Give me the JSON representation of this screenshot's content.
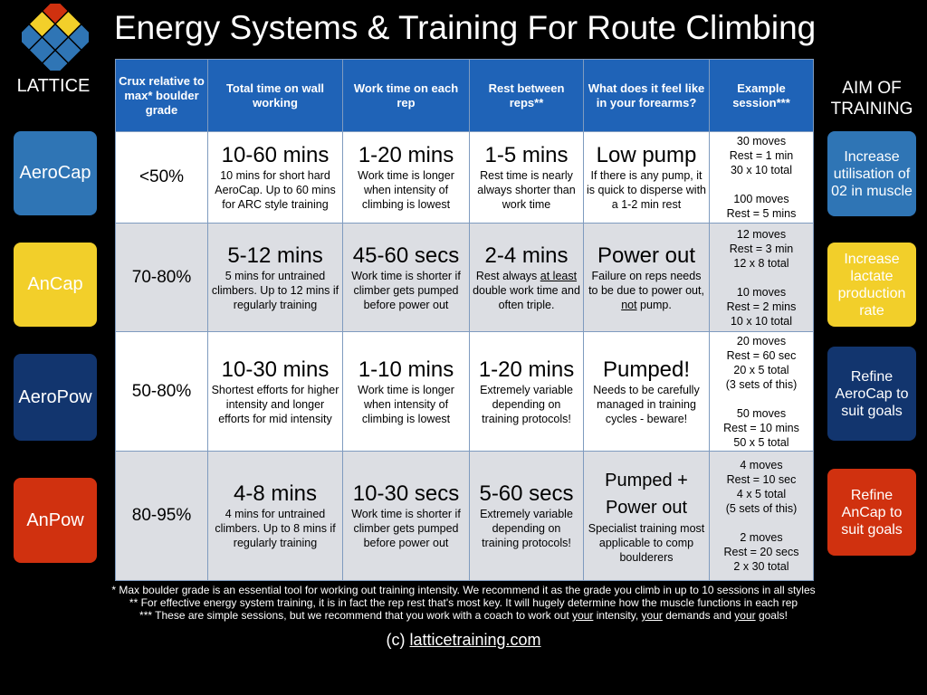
{
  "brand": "LATTICE",
  "title": "Energy Systems & Training For Route Climbing",
  "colors": {
    "aerocap": "#2f75b5",
    "ancap": "#f2cf2a",
    "aeropow": "#12356e",
    "anpow": "#d0310f",
    "header": "#1f63b7"
  },
  "left_buttons": [
    "AeroCap",
    "AnCap",
    "AeroPow",
    "AnPow"
  ],
  "aim_label": "AIM OF TRAINING",
  "aims": [
    "Increase utilisation of 02 in muscle",
    "Increase lactate production rate",
    "Refine AeroCap to suit goals",
    "Refine AnCap to suit goals"
  ],
  "headers": [
    "Crux relative to max* boulder grade",
    "Total time on wall working",
    "Work time on each rep",
    "Rest between reps**",
    "What does it feel like in your forearms?",
    "Example session***"
  ],
  "rows": [
    {
      "crux": "<50%",
      "total_big": "10-60 mins",
      "total_small": "10 mins for short hard AeroCap. Up to 60 mins for ARC style training",
      "work_big": "1-20 mins",
      "work_small": "Work time is longer when intensity of climbing is lowest",
      "rest_big": "1-5 mins",
      "rest_small": "Rest time is nearly always shorter than work time",
      "feel_big": "Low pump",
      "feel_small": "If there is any pump, it is quick to disperse with a 1-2 min rest",
      "session": "30 moves\nRest = 1 min\n30 x 10 total\n\n100 moves\nRest = 5 mins"
    },
    {
      "crux": "70-80%",
      "total_big": "5-12 mins",
      "total_small": "5 mins for untrained climbers. Up to 12 mins if regularly training",
      "work_big": "45-60 secs",
      "work_small": "Work time is shorter if climber gets pumped before power out",
      "rest_big": "2-4 mins",
      "rest_small_a": "Rest always ",
      "rest_small_u": "at least",
      "rest_small_b": " double work time and often triple.",
      "feel_big": "Power out",
      "feel_small_a": "Failure on reps needs to be due to power out, ",
      "feel_small_u": "not",
      "feel_small_b": " pump.",
      "session": "12 moves\nRest = 3 min\n12 x 8 total\n\n10 moves\nRest = 2 mins\n10 x 10 total"
    },
    {
      "crux": "50-80%",
      "total_big": "10-30 mins",
      "total_small": "Shortest efforts for higher intensity and longer efforts for mid intensity",
      "work_big": "1-10 mins",
      "work_small": "Work time is longer when intensity of climbing is lowest",
      "rest_big": "1-20 mins",
      "rest_small": "Extremely variable depending on training protocols!",
      "feel_big": "Pumped!",
      "feel_small": "Needs to be carefully managed in training cycles - beware!",
      "session": "20 moves\nRest = 60 sec\n20 x 5 total\n(3 sets of this)\n\n50 moves\nRest = 10 mins\n50 x 5 total"
    },
    {
      "crux": "80-95%",
      "total_big": "4-8 mins",
      "total_small": "4 mins for untrained climbers. Up to 8 mins if regularly training",
      "work_big": "10-30 secs",
      "work_small": "Work time is shorter if climber gets pumped before power out",
      "rest_big": "5-60 secs",
      "rest_small": "Extremely variable depending on training protocols!",
      "feel_big_1": "Pumped +",
      "feel_big_2": "Power out",
      "feel_small": "Specialist training most applicable to comp boulderers",
      "session": "4 moves\nRest = 10 sec\n4 x 5 total\n(5 sets of this)\n\n2 moves\nRest = 20 secs\n2 x 30 total"
    }
  ],
  "footnotes": {
    "f1": "* Max boulder grade is an essential tool for working out training intensity. We recommend it as the grade you climb in up to 10 sessions in all styles",
    "f2": "** For effective energy system training, it is in fact the rep rest that's most key. It will hugely determine how the muscle functions in each rep",
    "f3_a": "*** These are simple sessions, but we recommend that you work with a coach to work out ",
    "f3_your1": "your",
    "f3_b": " intensity, ",
    "f3_your2": "your",
    "f3_c": " demands and ",
    "f3_your3": "your",
    "f3_d": " goals!"
  },
  "copyright_prefix": "(c) ",
  "copyright_link": "latticetraining.com"
}
